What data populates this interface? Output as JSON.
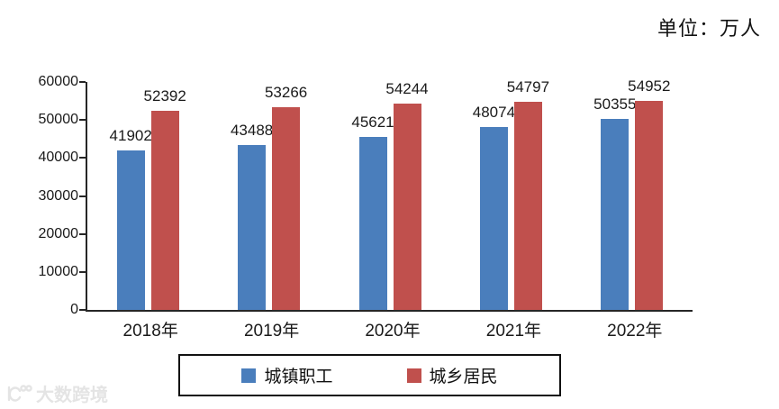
{
  "unit_label": "单位：万人",
  "watermark": {
    "text": "大数跨境"
  },
  "colors": {
    "blue": "#4a7ebc",
    "red": "#c0504d",
    "axis": "#262626",
    "text": "#1a1a1a",
    "watermark_gray": "#e2e2e2"
  },
  "chart_data": {
    "type": "bar",
    "title": "",
    "unit": "万人",
    "categories": [
      "2018年",
      "2019年",
      "2020年",
      "2021年",
      "2022年"
    ],
    "series": [
      {
        "name": "城镇职工",
        "color": "#4a7ebc",
        "values": [
          41902,
          43488,
          45621,
          48074,
          50355
        ]
      },
      {
        "name": "城乡居民",
        "color": "#c0504d",
        "values": [
          52392,
          53266,
          54244,
          54797,
          54952
        ]
      }
    ],
    "ylim": [
      0,
      60000
    ],
    "yticks": [
      0,
      10000,
      20000,
      30000,
      40000,
      50000,
      60000
    ],
    "grid": false,
    "legend_position": "bottom",
    "data_labels": true
  }
}
